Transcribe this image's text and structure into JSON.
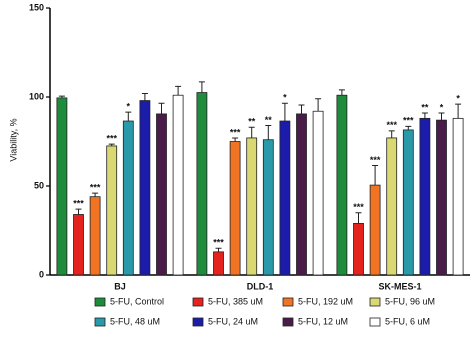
{
  "chart_data": {
    "type": "bar",
    "y_label": "Viability, %",
    "categories": [
      "BJ",
      "DLD-1",
      "SK-MES-1"
    ],
    "ylim": [
      0,
      150
    ],
    "yticks": [
      0,
      50,
      100,
      150
    ],
    "series": [
      {
        "name": "5-FU, Control",
        "color": "#1e8c3c",
        "values": [
          99.5,
          102.5,
          101
        ],
        "errors": [
          1,
          6,
          3
        ],
        "annotations": [
          null,
          null,
          null
        ]
      },
      {
        "name": "5-FU, 385 uM",
        "color": "#e4231f",
        "values": [
          34,
          13,
          29
        ],
        "errors": [
          3,
          2,
          6
        ],
        "annotations": [
          "***",
          "***",
          "***"
        ]
      },
      {
        "name": "5-FU, 192 uM",
        "color": "#f07423",
        "values": [
          44,
          75,
          50.5
        ],
        "errors": [
          2,
          2,
          11
        ],
        "annotations": [
          "***",
          "***",
          "***"
        ]
      },
      {
        "name": "5-FU, 96 uM",
        "color": "#d9d873",
        "values": [
          72.5,
          77,
          77
        ],
        "errors": [
          1,
          6,
          4
        ],
        "annotations": [
          "***",
          "**",
          "***"
        ]
      },
      {
        "name": "5-FU, 48 uM",
        "color": "#2a9aab",
        "values": [
          86.5,
          76,
          81.5
        ],
        "errors": [
          5,
          8,
          2
        ],
        "annotations": [
          "*",
          "**",
          "***"
        ]
      },
      {
        "name": "5-FU, 24 uM",
        "color": "#1c1caa",
        "values": [
          98,
          86.5,
          88
        ],
        "errors": [
          4,
          10,
          3
        ],
        "annotations": [
          null,
          "*",
          "**"
        ]
      },
      {
        "name": "5-FU, 12 uM",
        "color": "#4a1c4a",
        "values": [
          90.5,
          90.5,
          87
        ],
        "errors": [
          6,
          5,
          4
        ],
        "annotations": [
          null,
          null,
          "*"
        ]
      },
      {
        "name": "5-FU, 6 uM",
        "color": "#ffffff",
        "values": [
          101,
          92,
          88
        ],
        "errors": [
          5,
          7,
          8
        ],
        "annotations": [
          null,
          null,
          "*"
        ]
      }
    ]
  }
}
